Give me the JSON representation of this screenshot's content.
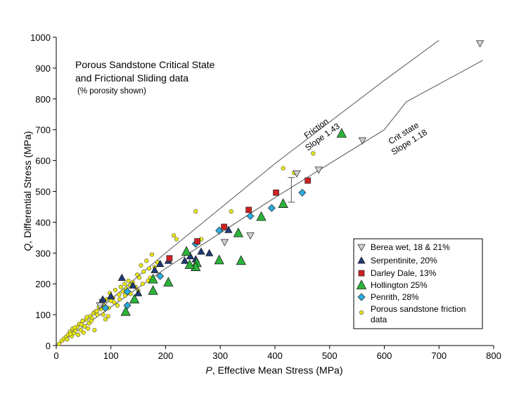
{
  "chart_data": {
    "type": "scatter",
    "title_line1": "Porous Sandstone Critical State",
    "title_line2": "and Frictional Sliding data",
    "subtitle": "(% porosity shown)",
    "xlabel_var": "P",
    "xlabel_rest": ", Effective Mean Stress (MPa)",
    "ylabel_var": "Q",
    "ylabel_rest": ",  Differential Stress (MPa)",
    "xlim": [
      0,
      800
    ],
    "ylim": [
      0,
      1000
    ],
    "xticks": [
      "0",
      "100",
      "200",
      "300",
      "400",
      "500",
      "600",
      "700",
      "800"
    ],
    "yticks": [
      "0",
      "100",
      "200",
      "300",
      "400",
      "500",
      "600",
      "700",
      "800",
      "900",
      "1000"
    ],
    "grid": false,
    "legend_position": "bottom-right",
    "lines": [
      {
        "label_line1": "Friction",
        "label_line2": "Slope 1.43",
        "points": [
          [
            0,
            0
          ],
          [
            200,
            300
          ],
          [
            400,
            590
          ],
          [
            600,
            860
          ],
          [
            700,
            990
          ]
        ],
        "color": "#555555"
      },
      {
        "label_line1": "Crit state",
        "label_line2": "Slope 1.18",
        "points": [
          [
            0,
            0
          ],
          [
            200,
            250
          ],
          [
            400,
            480
          ],
          [
            600,
            700
          ],
          [
            640,
            790
          ],
          [
            780,
            925
          ]
        ],
        "color": "#555555"
      }
    ],
    "error_bar": {
      "x": 430,
      "y_low": 465,
      "y_high": 545
    },
    "series": [
      {
        "name": "Berea wet, 18 & 21%",
        "marker": "triangle-down",
        "color": "#d0d0d0",
        "points": [
          [
            775,
            980
          ],
          [
            560,
            665
          ],
          [
            480,
            570
          ],
          [
            440,
            558
          ],
          [
            355,
            357
          ],
          [
            308,
            335
          ],
          [
            85,
            140
          ],
          [
            80,
            130
          ]
        ]
      },
      {
        "name": "Serpentinite, 20%",
        "marker": "triangle-up",
        "color": "#1c3a78",
        "points": [
          [
            85,
            150
          ],
          [
            100,
            160
          ],
          [
            120,
            220
          ],
          [
            140,
            195
          ],
          [
            150,
            170
          ],
          [
            180,
            245
          ],
          [
            190,
            265
          ],
          [
            205,
            275
          ],
          [
            235,
            275
          ],
          [
            245,
            290
          ],
          [
            255,
            280
          ],
          [
            265,
            305
          ],
          [
            280,
            300
          ],
          [
            315,
            375
          ]
        ]
      },
      {
        "name": "Darley Dale, 13%",
        "marker": "square",
        "color": "#d11f1f",
        "points": [
          [
            207,
            283
          ],
          [
            258,
            338
          ],
          [
            307,
            385
          ],
          [
            352,
            440
          ],
          [
            402,
            496
          ],
          [
            460,
            535
          ]
        ]
      },
      {
        "name": "Hollington 25%",
        "marker": "triangle-up-large",
        "color": "#2bb339",
        "points": [
          [
            522,
            688
          ],
          [
            415,
            460
          ],
          [
            375,
            418
          ],
          [
            333,
            365
          ],
          [
            338,
            275
          ],
          [
            298,
            277
          ],
          [
            257,
            268
          ],
          [
            255,
            255
          ],
          [
            244,
            262
          ],
          [
            238,
            305
          ],
          [
            205,
            205
          ],
          [
            177,
            178
          ],
          [
            177,
            215
          ],
          [
            143,
            150
          ],
          [
            127,
            110
          ]
        ]
      },
      {
        "name": "Penrith, 28%",
        "marker": "diamond",
        "color": "#29aee0",
        "points": [
          [
            450,
            496
          ],
          [
            394,
            446
          ],
          [
            355,
            420
          ],
          [
            298,
            373
          ],
          [
            255,
            330
          ],
          [
            190,
            225
          ],
          [
            130,
            130
          ],
          [
            90,
            122
          ],
          [
            130,
            175
          ]
        ]
      },
      {
        "name": "Porous sandstone friction data",
        "marker": "circle",
        "color": "#eae80c",
        "points": [
          [
            5,
            5
          ],
          [
            10,
            15
          ],
          [
            14,
            22
          ],
          [
            18,
            28
          ],
          [
            22,
            35
          ],
          [
            25,
            45
          ],
          [
            28,
            30
          ],
          [
            30,
            55
          ],
          [
            32,
            40
          ],
          [
            35,
            48
          ],
          [
            38,
            60
          ],
          [
            40,
            35
          ],
          [
            42,
            70
          ],
          [
            45,
            50
          ],
          [
            48,
            80
          ],
          [
            50,
            42
          ],
          [
            52,
            62
          ],
          [
            55,
            85
          ],
          [
            58,
            55
          ],
          [
            60,
            72
          ],
          [
            62,
            95
          ],
          [
            65,
            88
          ],
          [
            68,
            105
          ],
          [
            70,
            50
          ],
          [
            72,
            110
          ],
          [
            75,
            100
          ],
          [
            78,
            125
          ],
          [
            82,
            118
          ],
          [
            85,
            135
          ],
          [
            88,
            130
          ],
          [
            90,
            85
          ],
          [
            92,
            150
          ],
          [
            95,
            95
          ],
          [
            98,
            170
          ],
          [
            100,
            145
          ],
          [
            104,
            155
          ],
          [
            108,
            180
          ],
          [
            112,
            130
          ],
          [
            115,
            165
          ],
          [
            118,
            190
          ],
          [
            122,
            175
          ],
          [
            125,
            200
          ],
          [
            128,
            185
          ],
          [
            132,
            210
          ],
          [
            135,
            195
          ],
          [
            140,
            205
          ],
          [
            145,
            190
          ],
          [
            148,
            230
          ],
          [
            152,
            220
          ],
          [
            155,
            260
          ],
          [
            160,
            240
          ],
          [
            165,
            275
          ],
          [
            170,
            250
          ],
          [
            172,
            220
          ],
          [
            175,
            295
          ],
          [
            180,
            255
          ],
          [
            185,
            270
          ],
          [
            215,
            357
          ],
          [
            220,
            345
          ],
          [
            255,
            435
          ],
          [
            265,
            345
          ],
          [
            320,
            435
          ],
          [
            415,
            575
          ],
          [
            435,
            560
          ],
          [
            470,
            623
          ],
          [
            20,
            20
          ],
          [
            26,
            38
          ],
          [
            34,
            58
          ],
          [
            46,
            68
          ],
          [
            56,
            92
          ],
          [
            64,
            80
          ],
          [
            74,
            112
          ],
          [
            86,
            100
          ],
          [
            96,
            122
          ],
          [
            106,
            140
          ],
          [
            116,
            150
          ],
          [
            126,
            162
          ],
          [
            136,
            168
          ],
          [
            150,
            178
          ],
          [
            158,
            200
          ],
          [
            168,
            210
          ]
        ]
      }
    ]
  }
}
